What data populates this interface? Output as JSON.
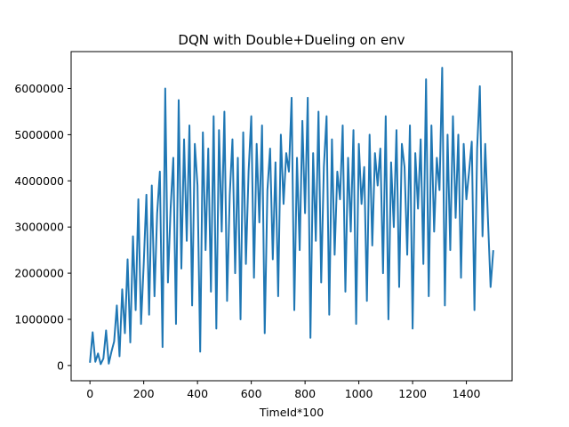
{
  "chart_data": {
    "type": "line",
    "title": "DQN with Double+Dueling on env",
    "xlabel": "TimeId*100",
    "ylabel": "",
    "xlim": [
      -70,
      1570
    ],
    "ylim": [
      -330000,
      6800000
    ],
    "grid": false,
    "legend": "none",
    "x_ticks": [
      0,
      200,
      400,
      600,
      800,
      1000,
      1200,
      1400
    ],
    "x_tick_labels": [
      "0",
      "200",
      "400",
      "600",
      "800",
      "1000",
      "1200",
      "1400"
    ],
    "y_ticks": [
      0,
      1000000,
      2000000,
      3000000,
      4000000,
      5000000,
      6000000
    ],
    "y_tick_labels": [
      "0",
      "1000000",
      "2000000",
      "3000000",
      "4000000",
      "5000000",
      "6000000"
    ],
    "series": [
      {
        "color": "#1f77b4",
        "x_start": 0,
        "x_step": 10,
        "values": [
          60000,
          720000,
          80000,
          260000,
          30000,
          150000,
          760000,
          40000,
          300000,
          520000,
          1300000,
          200000,
          1650000,
          700000,
          2300000,
          500000,
          2800000,
          1200000,
          3600000,
          900000,
          2200000,
          3700000,
          1100000,
          3900000,
          1500000,
          3300000,
          4200000,
          400000,
          6000000,
          1800000,
          3400000,
          4500000,
          900000,
          5750000,
          2100000,
          4900000,
          2700000,
          5200000,
          1300000,
          4800000,
          3900000,
          300000,
          5050000,
          2500000,
          4700000,
          1600000,
          5400000,
          800000,
          5100000,
          2900000,
          5500000,
          1400000,
          3700000,
          4900000,
          2000000,
          4500000,
          1000000,
          5050000,
          2200000,
          4200000,
          5400000,
          1900000,
          4800000,
          3100000,
          5200000,
          700000,
          3800000,
          4700000,
          2300000,
          4400000,
          1500000,
          5000000,
          3500000,
          4600000,
          4200000,
          5800000,
          1200000,
          4500000,
          2500000,
          5300000,
          3300000,
          5800000,
          600000,
          4600000,
          2700000,
          5500000,
          1800000,
          4300000,
          5400000,
          1100000,
          4900000,
          2400000,
          4200000,
          3600000,
          5200000,
          1600000,
          4500000,
          2900000,
          5100000,
          900000,
          4800000,
          3500000,
          4300000,
          1400000,
          5000000,
          2600000,
          4600000,
          3900000,
          4700000,
          2000000,
          5400000,
          1000000,
          4400000,
          3000000,
          5100000,
          1700000,
          4800000,
          4300000,
          2400000,
          5200000,
          800000,
          4600000,
          3400000,
          4900000,
          2200000,
          6200000,
          1500000,
          5200000,
          2900000,
          4500000,
          3800000,
          6450000,
          1300000,
          5000000,
          2500000,
          5400000,
          3200000,
          5000000,
          1900000,
          4800000,
          3600000,
          4200000,
          4850000,
          1200000,
          4700000,
          6050000,
          2800000,
          4800000,
          3200000,
          1700000,
          2500000
        ]
      }
    ]
  }
}
